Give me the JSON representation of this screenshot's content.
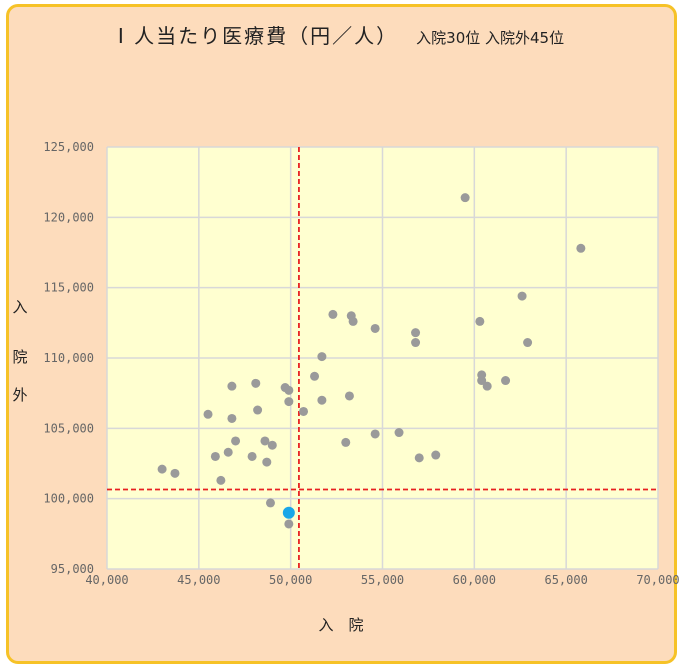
{
  "chart_data": {
    "type": "scatter",
    "title": "I 人当たり医療費（円／人）",
    "subtitle": "入院30位 入院外45位",
    "xlabel": "入　院",
    "ylabel": [
      "入",
      "院",
      "外"
    ],
    "xlim": [
      40000,
      70000
    ],
    "ylim": [
      95000,
      125000
    ],
    "x_ticks": [
      40000,
      45000,
      50000,
      55000,
      60000,
      65000,
      70000
    ],
    "y_ticks": [
      95000,
      100000,
      105000,
      110000,
      115000,
      120000,
      125000
    ],
    "x_tick_labels": [
      "40,000",
      "45,000",
      "50,000",
      "55,000",
      "60,000",
      "65,000",
      "70,000"
    ],
    "y_tick_labels": [
      "95,000",
      "100,000",
      "105,000",
      "110,000",
      "115,000",
      "120,000",
      "125,000"
    ],
    "grid": true,
    "reference_lines": {
      "x": 50450,
      "y": 100650
    },
    "highlight": {
      "x": 49900,
      "y": 99000
    },
    "points": [
      [
        43000,
        102100
      ],
      [
        43700,
        101800
      ],
      [
        45500,
        106000
      ],
      [
        45900,
        103000
      ],
      [
        46200,
        101300
      ],
      [
        46600,
        103300
      ],
      [
        46800,
        108000
      ],
      [
        46800,
        105700
      ],
      [
        47000,
        104100
      ],
      [
        47900,
        103000
      ],
      [
        48100,
        108200
      ],
      [
        48200,
        106300
      ],
      [
        48600,
        104100
      ],
      [
        48700,
        102600
      ],
      [
        48900,
        99700
      ],
      [
        49000,
        103800
      ],
      [
        49700,
        107900
      ],
      [
        49900,
        107700
      ],
      [
        49900,
        106900
      ],
      [
        49900,
        98200
      ],
      [
        50700,
        106200
      ],
      [
        51300,
        108700
      ],
      [
        51700,
        110100
      ],
      [
        51700,
        107000
      ],
      [
        52300,
        113100
      ],
      [
        53000,
        104000
      ],
      [
        53200,
        107300
      ],
      [
        53300,
        113000
      ],
      [
        53400,
        112600
      ],
      [
        54600,
        112100
      ],
      [
        54600,
        104600
      ],
      [
        55900,
        104700
      ],
      [
        56800,
        111800
      ],
      [
        56800,
        111100
      ],
      [
        57000,
        102900
      ],
      [
        57900,
        103100
      ],
      [
        59500,
        121400
      ],
      [
        60300,
        112600
      ],
      [
        60400,
        108800
      ],
      [
        60400,
        108400
      ],
      [
        60700,
        108000
      ],
      [
        61700,
        108400
      ],
      [
        62600,
        114400
      ],
      [
        62900,
        111100
      ],
      [
        65800,
        117800
      ]
    ],
    "colors": {
      "point": "#9a9a9a",
      "highlight": "#1aa7e8",
      "reference": "#e82020",
      "plot_background": "#ffffd0",
      "grid": "#d8d8d8"
    }
  }
}
